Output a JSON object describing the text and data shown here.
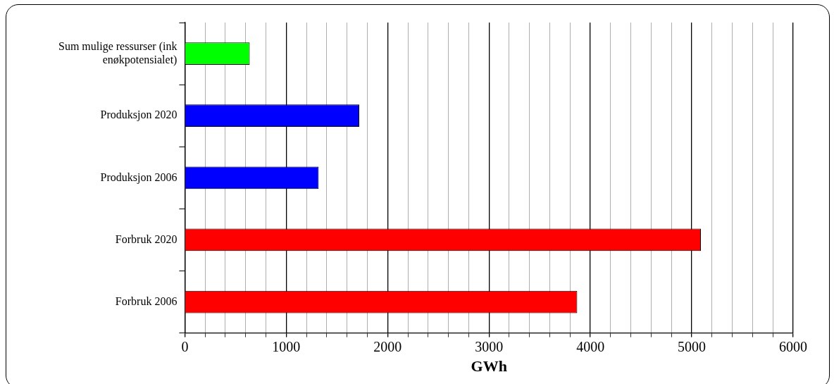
{
  "chart_data": {
    "type": "bar",
    "orientation": "horizontal",
    "xlabel": "GWh",
    "categories": [
      "Sum mulige ressurser (ink enøkpotensialet)",
      "Produksjon 2020",
      "Produksjon 2006",
      "Forbruk 2020",
      "Forbruk 2006"
    ],
    "values": [
      640,
      1720,
      1320,
      5090,
      3870
    ],
    "colors": [
      "#00ff00",
      "#0000ff",
      "#0000ff",
      "#ff0000",
      "#ff0000"
    ],
    "xlim": [
      0,
      6000
    ],
    "xticks": [
      0,
      {
        "value": 200,
        "label": null
      },
      {
        "value": 400,
        "label": null
      },
      {
        "value": 600,
        "label": null
      },
      {
        "value": 800,
        "label": null
      },
      1000,
      {
        "value": 1200,
        "label": null
      },
      {
        "value": 1400,
        "label": null
      },
      {
        "value": 1600,
        "label": null
      },
      {
        "value": 1800,
        "label": null
      },
      2000,
      {
        "value": 2200,
        "label": null
      },
      {
        "value": 2400,
        "label": null
      },
      {
        "value": 2600,
        "label": null
      },
      {
        "value": 2800,
        "label": null
      },
      3000,
      {
        "value": 3200,
        "label": null
      },
      {
        "value": 3400,
        "label": null
      },
      {
        "value": 3600,
        "label": null
      },
      {
        "value": 3800,
        "label": null
      },
      4000,
      {
        "value": 4200,
        "label": null
      },
      {
        "value": 4400,
        "label": null
      },
      {
        "value": 4600,
        "label": null
      },
      {
        "value": 4800,
        "label": null
      },
      5000,
      {
        "value": 5200,
        "label": null
      },
      {
        "value": 5400,
        "label": null
      },
      {
        "value": 5600,
        "label": null
      },
      {
        "value": 5800,
        "label": null
      },
      6000
    ],
    "grid": "x",
    "legend": false
  }
}
